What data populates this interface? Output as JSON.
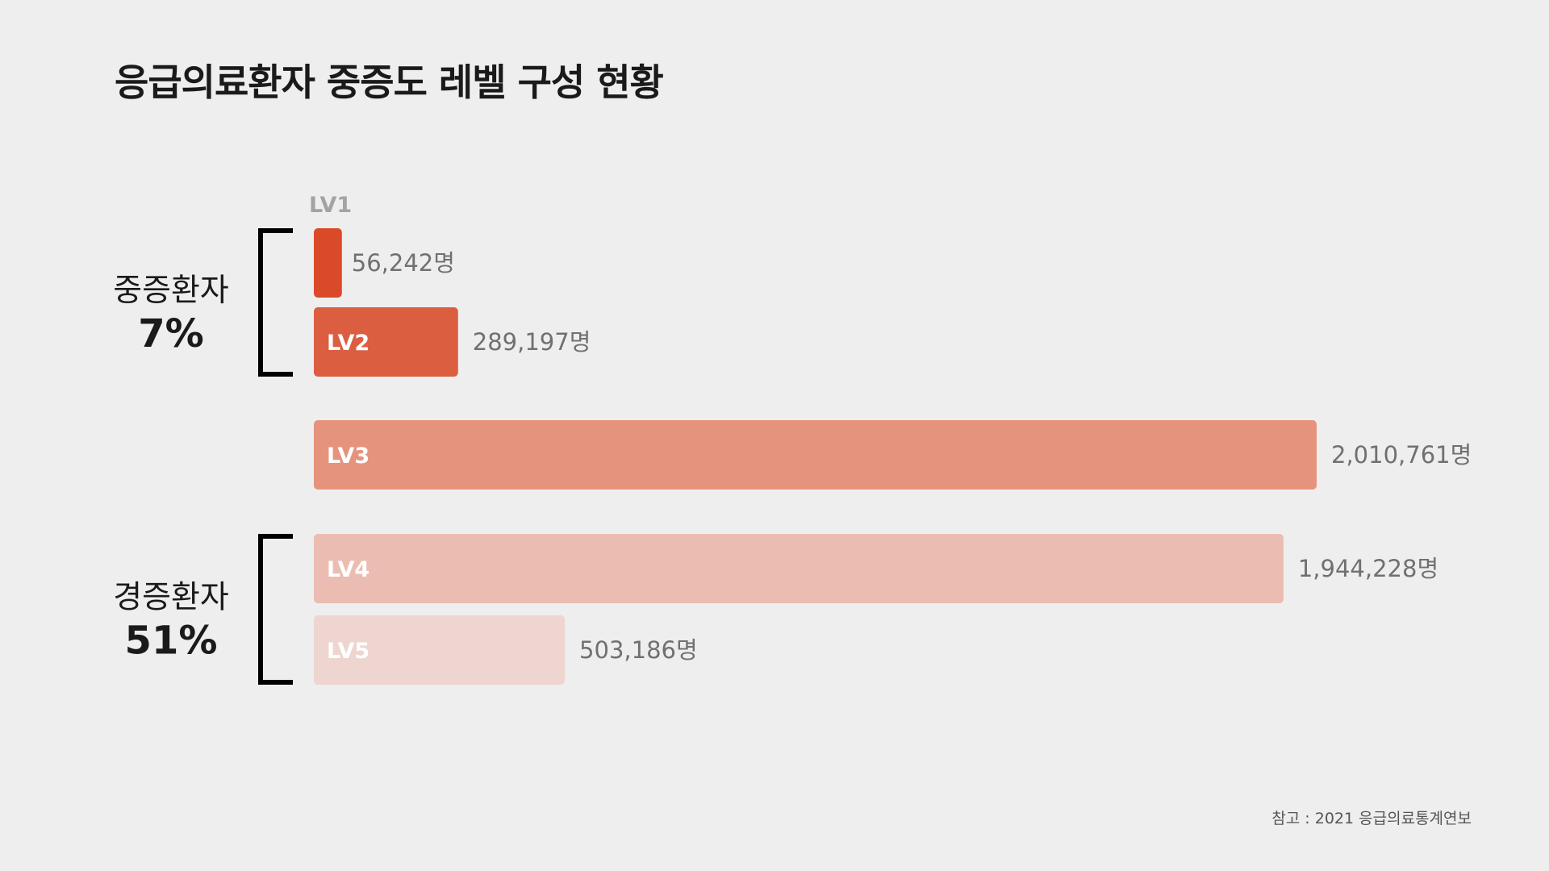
{
  "title": "응급의료환자 중증도 레벨 구성 현황",
  "source": "참고 : 2021 응급의료통계연보",
  "groups": [
    {
      "name": "중증환자",
      "percent": "7%",
      "levels": [
        "LV1",
        "LV2"
      ]
    },
    {
      "name": "경증환자",
      "percent": "51%",
      "levels": [
        "LV4",
        "LV5"
      ]
    }
  ],
  "chart_data": {
    "type": "bar",
    "orientation": "horizontal",
    "categories": [
      "LV1",
      "LV2",
      "LV3",
      "LV4",
      "LV5"
    ],
    "values": [
      56242,
      289197,
      2010761,
      1944228,
      503186
    ],
    "value_labels": [
      "56,242명",
      "289,197명",
      "2,010,761명",
      "1,944,228명",
      "503,186명"
    ],
    "unit": "명",
    "colors": [
      "#db4a28",
      "#dc5e40",
      "#e6937d",
      "#ebbdb2",
      "#efd5cf"
    ],
    "bar_text_color": "#ffffff",
    "lv1_label_color": "#a3a3a3",
    "title": "응급의료환자 중증도 레벨 구성 현황",
    "grid": false,
    "legend": "none"
  }
}
